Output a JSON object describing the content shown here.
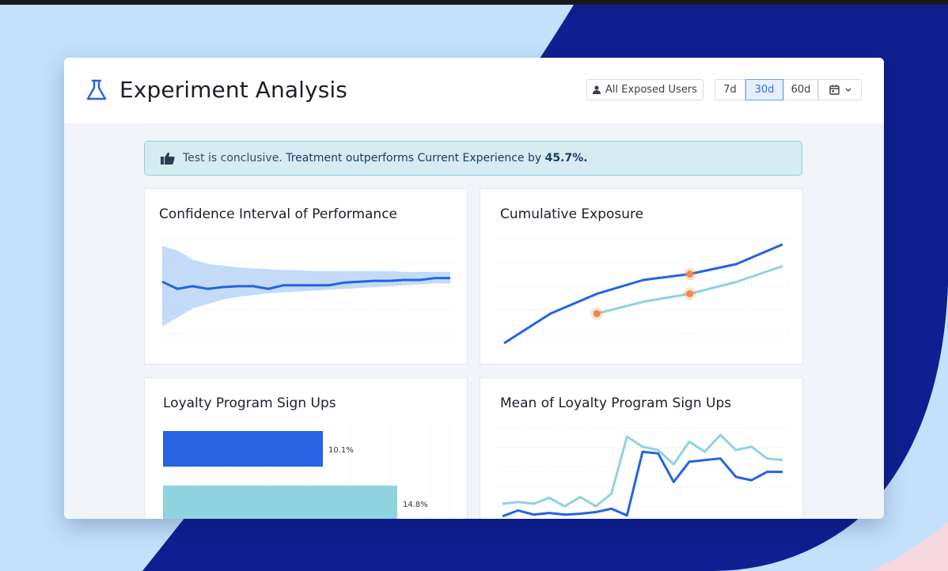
{
  "colors": {
    "background_light": "#c3e1fb",
    "background_navy": "#0e1f91",
    "background_pink": "#f6d7e0",
    "primary_blue": "#2563e0",
    "teal": "#8fd3de",
    "ci_band": "#bcd7f7",
    "marker_orange": "#f08a4b"
  },
  "header": {
    "title": "Experiment Analysis",
    "icon": "flask-icon",
    "audience_filter": "All Exposed Users",
    "ranges": [
      {
        "label": "7d",
        "active": false
      },
      {
        "label": "30d",
        "active": true
      },
      {
        "label": "60d",
        "active": false
      }
    ],
    "calendar_icon": "calendar-icon"
  },
  "banner": {
    "icon": "thumbs-up-icon",
    "lead": "Test is conclusive.",
    "emphasis": "Treatment outperforms Current Experience by",
    "percent": "45.7%."
  },
  "panels": {
    "confidence": {
      "title": "Confidence Interval of Performance"
    },
    "exposure": {
      "title": "Cumulative Exposure"
    },
    "signups": {
      "title": "Loyalty Program Sign Ups"
    },
    "mean": {
      "title": "Mean of Loyalty Program Sign Ups"
    }
  },
  "chart_data": [
    {
      "type": "line",
      "title": "Confidence Interval of Performance",
      "x": [
        0,
        1,
        2,
        3,
        4,
        5,
        6,
        7,
        8,
        9,
        10,
        11,
        12,
        13,
        14,
        15,
        16,
        17,
        18,
        19
      ],
      "series": [
        {
          "values": [
            0.6,
            0.52,
            0.55,
            0.52,
            0.54,
            0.55,
            0.55,
            0.52,
            0.56,
            0.56,
            0.56,
            0.56,
            0.59,
            0.6,
            0.61,
            0.61,
            0.62,
            0.62,
            0.64,
            0.64
          ]
        }
      ],
      "band": {
        "upper": [
          1.0,
          0.95,
          0.85,
          0.8,
          0.78,
          0.76,
          0.75,
          0.74,
          0.73,
          0.73,
          0.72,
          0.72,
          0.72,
          0.72,
          0.72,
          0.72,
          0.71,
          0.71,
          0.71,
          0.71
        ],
        "lower": [
          0.1,
          0.2,
          0.3,
          0.35,
          0.4,
          0.43,
          0.45,
          0.47,
          0.48,
          0.49,
          0.5,
          0.51,
          0.52,
          0.53,
          0.54,
          0.55,
          0.56,
          0.57,
          0.58,
          0.58
        ]
      },
      "ylim": [
        0,
        1
      ]
    },
    {
      "type": "line",
      "title": "Cumulative Exposure",
      "x": [
        0,
        1,
        2,
        3,
        4,
        5,
        6
      ],
      "series": [
        {
          "values": [
            0,
            30,
            50,
            64,
            70,
            80,
            100
          ],
          "color": "primary_blue"
        },
        {
          "values": [
            null,
            null,
            30,
            42,
            50,
            62,
            78
          ],
          "color": "teal"
        }
      ],
      "markers": [
        {
          "series": 1,
          "x": 2
        },
        {
          "series": 0,
          "x": 4
        },
        {
          "series": 1,
          "x": 4
        }
      ],
      "ylim": [
        0,
        100
      ]
    },
    {
      "type": "bar",
      "title": "Loyalty Program Sign Ups",
      "orientation": "horizontal",
      "values": [
        10.1,
        14.8
      ],
      "data_labels": [
        "10.1%",
        "14.8%"
      ],
      "colors": [
        "primary_blue",
        "teal"
      ],
      "xlim": [
        0,
        20
      ]
    },
    {
      "type": "line",
      "title": "Mean of Loyalty Program Sign Ups",
      "x": [
        0,
        1,
        2,
        3,
        4,
        5,
        6,
        7,
        8,
        9,
        10,
        11,
        12,
        13,
        14,
        15,
        16,
        17,
        18
      ],
      "series": [
        {
          "values": [
            0.03,
            0.1,
            0.05,
            0.07,
            0.05,
            0.06,
            0.08,
            0.12,
            0.04,
            0.8,
            0.78,
            0.44,
            0.68,
            0.7,
            0.72,
            0.5,
            0.46,
            0.56,
            0.56
          ],
          "color": "primary_blue"
        },
        {
          "values": [
            0.18,
            0.2,
            0.18,
            0.25,
            0.15,
            0.26,
            0.15,
            0.3,
            0.98,
            0.86,
            0.82,
            0.65,
            0.92,
            0.8,
            1.0,
            0.82,
            0.86,
            0.72,
            0.7
          ],
          "color": "teal"
        }
      ],
      "ylim": [
        0,
        1.0
      ]
    }
  ]
}
